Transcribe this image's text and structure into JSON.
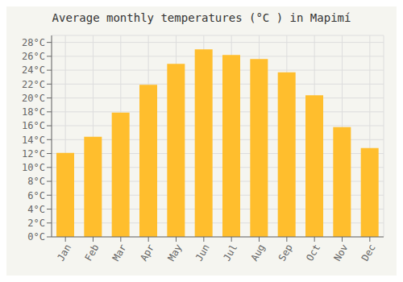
{
  "chart_data": {
    "type": "bar",
    "title": "Average monthly temperatures (°C ) in Mapimí",
    "categories": [
      "Jan",
      "Feb",
      "Mar",
      "Apr",
      "May",
      "Jun",
      "Jul",
      "Aug",
      "Sep",
      "Oct",
      "Nov",
      "Dec"
    ],
    "values": [
      12.1,
      14.4,
      17.9,
      21.9,
      24.9,
      27.0,
      26.2,
      25.6,
      23.7,
      20.4,
      15.8,
      12.8
    ],
    "color": "#FFBE2D",
    "ylim": [
      0,
      29
    ],
    "yticks": [
      {
        "value": 0,
        "label": "0°C"
      },
      {
        "value": 2,
        "label": "2°C"
      },
      {
        "value": 4,
        "label": "4°C"
      },
      {
        "value": 6,
        "label": "6°C"
      },
      {
        "value": 8,
        "label": "8°C"
      },
      {
        "value": 10,
        "label": "10°C"
      },
      {
        "value": 12,
        "label": "12°C"
      },
      {
        "value": 14,
        "label": "14°C"
      },
      {
        "value": 16,
        "label": "16°C"
      },
      {
        "value": 18,
        "label": "18°C"
      },
      {
        "value": 20,
        "label": "20°C"
      },
      {
        "value": 22,
        "label": "22°C"
      },
      {
        "value": 24,
        "label": "24°C"
      },
      {
        "value": 26,
        "label": "26°C"
      },
      {
        "value": 28,
        "label": "28°C"
      }
    ],
    "grid": true
  }
}
